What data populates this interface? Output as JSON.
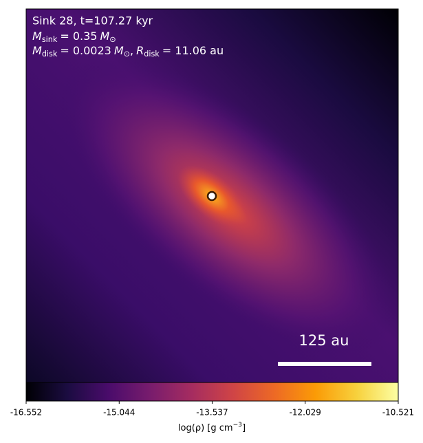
{
  "chart_data": {
    "type": "image",
    "title": "Sink 28, t=107.27 kyr",
    "annotations": [
      {
        "parts": [
          {
            "text": "M",
            "style": "italic"
          },
          {
            "text": "sink",
            "style": "sub"
          },
          {
            "text": "= 0.35"
          },
          {
            "text": "M",
            "style": "italic"
          },
          {
            "text": "⊙",
            "style": "sub"
          }
        ]
      },
      {
        "parts": [
          {
            "text": "M",
            "style": "italic"
          },
          {
            "text": "disk",
            "style": "sub"
          },
          {
            "text": "= 0.0023"
          },
          {
            "text": "M",
            "style": "italic"
          },
          {
            "text": "⊙",
            "style": "sub"
          },
          {
            "text": ","
          },
          {
            "text": "R",
            "style": "italic"
          },
          {
            "text": "disk",
            "style": "sub"
          },
          {
            "text": "= 11.06 au"
          }
        ]
      }
    ],
    "scale_bar_label": "125 au",
    "colorbar": {
      "label": [
        {
          "text": "log(ρ) [g cm"
        },
        {
          "text": "−3",
          "style": "sup"
        },
        {
          "text": "]"
        }
      ],
      "colormap": "inferno",
      "lim": [
        -16.552,
        -10.521
      ],
      "ticks": [
        -16.552,
        -15.044,
        -13.537,
        -12.029,
        -10.521
      ]
    }
  }
}
